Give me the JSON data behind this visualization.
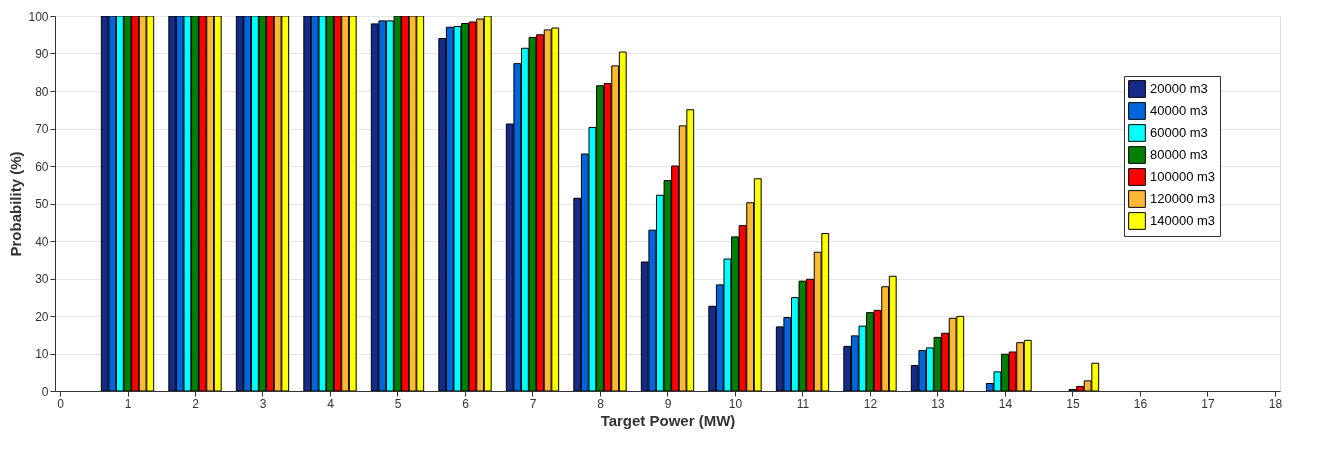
{
  "chart_data": {
    "type": "bar",
    "xlabel": "Target Power (MW)",
    "ylabel": "Probability (%)",
    "x": [
      1,
      2,
      3,
      4,
      5,
      6,
      7,
      8,
      9,
      10,
      11,
      12,
      13,
      14,
      15,
      16
    ],
    "series": [
      {
        "name": "20000 m3",
        "color": "#162a88",
        "values": [
          100,
          100,
          100,
          100,
          97.9,
          94,
          71.2,
          51.4,
          34.4,
          22.6,
          17.1,
          11.9,
          6.8,
          0,
          0,
          0
        ]
      },
      {
        "name": "40000 m3",
        "color": "#0066dd",
        "values": [
          100,
          100,
          100,
          100,
          98.7,
          97,
          87.3,
          63.2,
          42.9,
          28.3,
          19.6,
          14.7,
          10.8,
          2,
          0,
          0
        ]
      },
      {
        "name": "60000 m3",
        "color": "#00ffff",
        "values": [
          100,
          100,
          100,
          100,
          98.7,
          97.2,
          91.4,
          70.3,
          52.2,
          35.2,
          24.9,
          17.3,
          11.5,
          5.1,
          0,
          0
        ]
      },
      {
        "name": "80000 m3",
        "color": "#008000",
        "values": [
          100,
          100,
          100,
          100,
          100,
          98,
          94.3,
          81.4,
          56.1,
          41.1,
          29.3,
          20.9,
          14.3,
          9.8,
          0.4,
          0
        ]
      },
      {
        "name": "100000 m3",
        "color": "#ff0000",
        "values": [
          100,
          100,
          100,
          100,
          100,
          98.4,
          95,
          82,
          60,
          44.1,
          29.8,
          21.5,
          15.4,
          10.4,
          1.2,
          0
        ]
      },
      {
        "name": "120000 m3",
        "color": "#ffb833",
        "values": [
          100,
          100,
          100,
          100,
          100,
          99.2,
          96.3,
          86.7,
          70.7,
          50.2,
          37,
          27.8,
          19.4,
          12.9,
          2.7,
          0
        ]
      },
      {
        "name": "140000 m3",
        "color": "#ffff00",
        "values": [
          100,
          100,
          100,
          100,
          100,
          100,
          96.8,
          90.4,
          75,
          56.6,
          42,
          30.6,
          19.9,
          13.5,
          7.4,
          0
        ]
      }
    ],
    "xlim": [
      0,
      18
    ],
    "xticks": [
      0,
      1,
      2,
      3,
      4,
      5,
      6,
      7,
      8,
      9,
      10,
      11,
      12,
      13,
      14,
      15,
      16,
      17,
      18
    ],
    "ylim": [
      0,
      100
    ],
    "yticks": [
      0,
      10,
      20,
      30,
      40,
      50,
      60,
      70,
      80,
      90,
      100
    ],
    "grid": "y",
    "legend": "top right"
  }
}
